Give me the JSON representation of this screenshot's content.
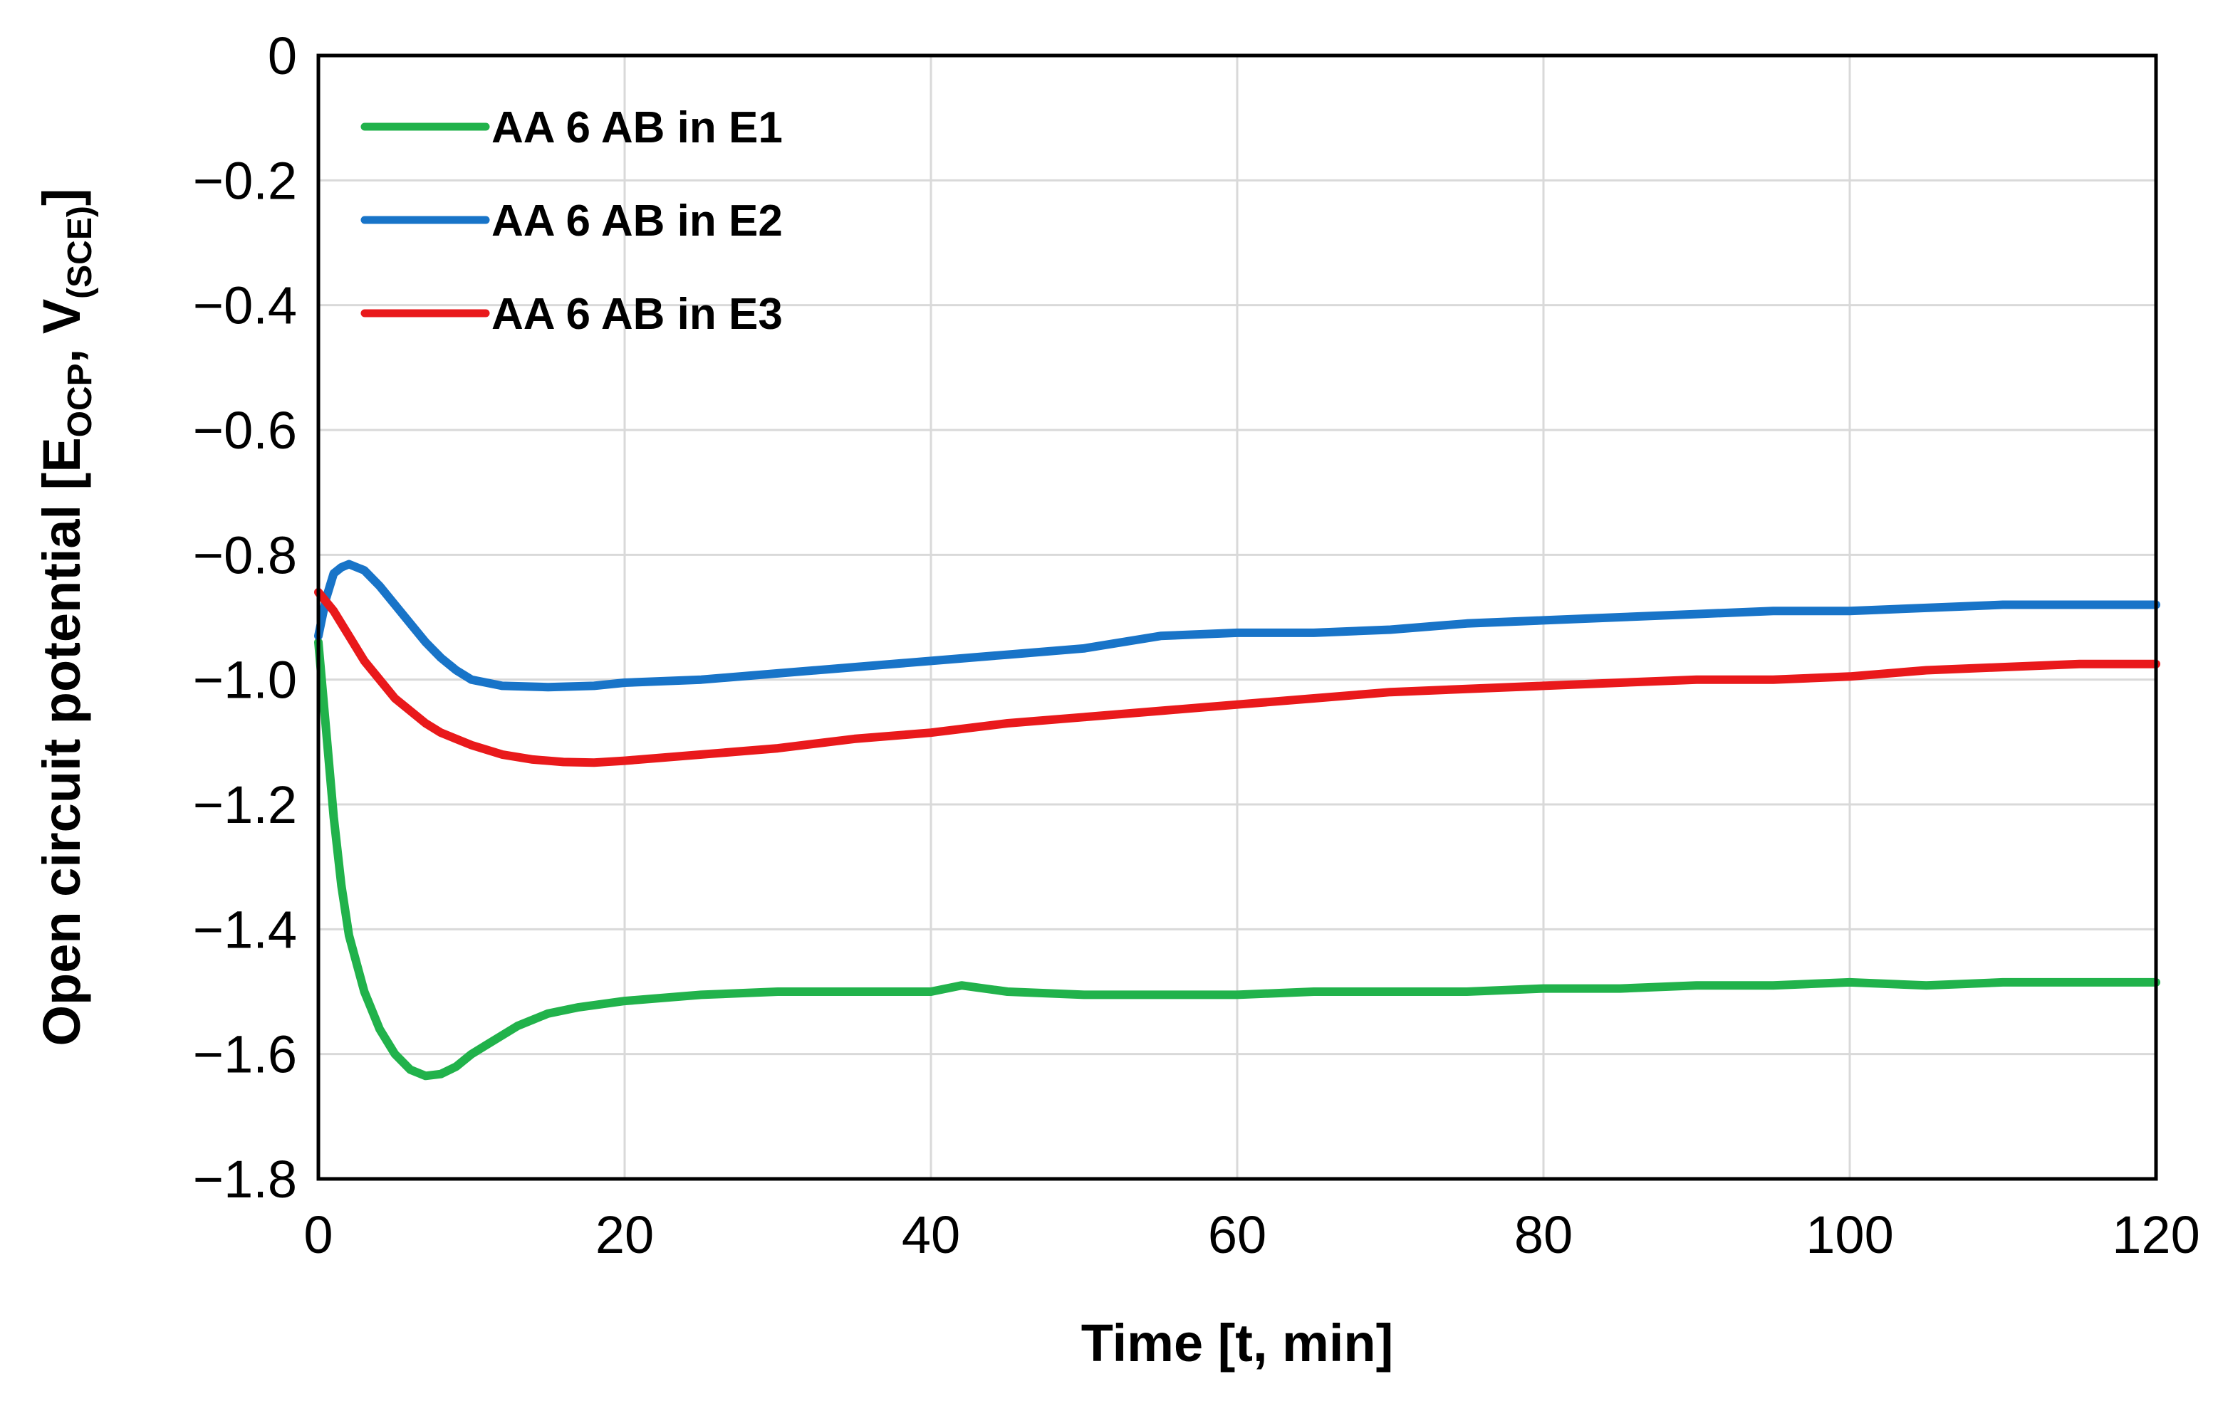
{
  "chart_data": {
    "type": "line",
    "title": "",
    "xlabel": "Time [t, min]",
    "ylabel": {
      "main": "Open circuit potential [E",
      "sub1": "OCP",
      "mid": ", V",
      "sub2": "(SCE)",
      "end": "]"
    },
    "xlim": [
      0,
      120
    ],
    "ylim": [
      -1.8,
      0
    ],
    "xticks": [
      0,
      20,
      40,
      60,
      80,
      100,
      120
    ],
    "yticks": [
      0,
      -0.2,
      -0.4,
      -0.6,
      -0.8,
      -1.0,
      -1.2,
      -1.4,
      -1.6,
      -1.8
    ],
    "xtick_labels": [
      "0",
      "20",
      "40",
      "60",
      "80",
      "100",
      "120"
    ],
    "ytick_labels": [
      "0",
      "−0.2",
      "−0.4",
      "−0.6",
      "−0.8",
      "−1.0",
      "−1.2",
      "−1.4",
      "−1.6",
      "−1.8"
    ],
    "grid": true,
    "legend_position": "top-left",
    "series": [
      {
        "name": "AA 6 AB in E1",
        "color": "#21b24b",
        "points": [
          [
            0,
            -0.94
          ],
          [
            0.5,
            -1.08
          ],
          [
            1,
            -1.22
          ],
          [
            1.5,
            -1.33
          ],
          [
            2,
            -1.41
          ],
          [
            3,
            -1.5
          ],
          [
            4,
            -1.56
          ],
          [
            5,
            -1.6
          ],
          [
            6,
            -1.625
          ],
          [
            7,
            -1.635
          ],
          [
            8,
            -1.632
          ],
          [
            9,
            -1.62
          ],
          [
            10,
            -1.6
          ],
          [
            11,
            -1.585
          ],
          [
            12,
            -1.57
          ],
          [
            13,
            -1.555
          ],
          [
            14,
            -1.545
          ],
          [
            15,
            -1.535
          ],
          [
            17,
            -1.525
          ],
          [
            20,
            -1.515
          ],
          [
            25,
            -1.505
          ],
          [
            30,
            -1.5
          ],
          [
            35,
            -1.5
          ],
          [
            40,
            -1.5
          ],
          [
            42,
            -1.49
          ],
          [
            45,
            -1.5
          ],
          [
            50,
            -1.505
          ],
          [
            55,
            -1.505
          ],
          [
            60,
            -1.505
          ],
          [
            65,
            -1.5
          ],
          [
            70,
            -1.5
          ],
          [
            75,
            -1.5
          ],
          [
            80,
            -1.495
          ],
          [
            85,
            -1.495
          ],
          [
            90,
            -1.49
          ],
          [
            95,
            -1.49
          ],
          [
            100,
            -1.485
          ],
          [
            105,
            -1.49
          ],
          [
            110,
            -1.485
          ],
          [
            115,
            -1.485
          ],
          [
            120,
            -1.485
          ]
        ]
      },
      {
        "name": "AA 6 AB in E2",
        "color": "#1874c8",
        "points": [
          [
            0,
            -0.93
          ],
          [
            0.5,
            -0.87
          ],
          [
            1,
            -0.83
          ],
          [
            1.5,
            -0.82
          ],
          [
            2,
            -0.815
          ],
          [
            3,
            -0.825
          ],
          [
            4,
            -0.85
          ],
          [
            5,
            -0.88
          ],
          [
            6,
            -0.91
          ],
          [
            7,
            -0.94
          ],
          [
            8,
            -0.965
          ],
          [
            9,
            -0.985
          ],
          [
            10,
            -1.0
          ],
          [
            12,
            -1.01
          ],
          [
            15,
            -1.012
          ],
          [
            18,
            -1.01
          ],
          [
            20,
            -1.005
          ],
          [
            25,
            -1.0
          ],
          [
            30,
            -0.99
          ],
          [
            35,
            -0.98
          ],
          [
            40,
            -0.97
          ],
          [
            45,
            -0.96
          ],
          [
            50,
            -0.95
          ],
          [
            55,
            -0.93
          ],
          [
            60,
            -0.925
          ],
          [
            65,
            -0.925
          ],
          [
            70,
            -0.92
          ],
          [
            75,
            -0.91
          ],
          [
            80,
            -0.905
          ],
          [
            85,
            -0.9
          ],
          [
            90,
            -0.895
          ],
          [
            95,
            -0.89
          ],
          [
            100,
            -0.89
          ],
          [
            105,
            -0.885
          ],
          [
            110,
            -0.88
          ],
          [
            115,
            -0.88
          ],
          [
            120,
            -0.88
          ]
        ]
      },
      {
        "name": "AA 6 AB in E3",
        "color": "#e9191b",
        "points": [
          [
            0,
            -0.86
          ],
          [
            1,
            -0.89
          ],
          [
            2,
            -0.93
          ],
          [
            3,
            -0.97
          ],
          [
            4,
            -1.0
          ],
          [
            5,
            -1.03
          ],
          [
            6,
            -1.05
          ],
          [
            7,
            -1.07
          ],
          [
            8,
            -1.085
          ],
          [
            10,
            -1.105
          ],
          [
            12,
            -1.12
          ],
          [
            14,
            -1.128
          ],
          [
            16,
            -1.132
          ],
          [
            18,
            -1.133
          ],
          [
            20,
            -1.13
          ],
          [
            25,
            -1.12
          ],
          [
            30,
            -1.11
          ],
          [
            35,
            -1.095
          ],
          [
            40,
            -1.085
          ],
          [
            45,
            -1.07
          ],
          [
            50,
            -1.06
          ],
          [
            55,
            -1.05
          ],
          [
            60,
            -1.04
          ],
          [
            65,
            -1.03
          ],
          [
            70,
            -1.02
          ],
          [
            75,
            -1.015
          ],
          [
            80,
            -1.01
          ],
          [
            85,
            -1.005
          ],
          [
            90,
            -1.0
          ],
          [
            95,
            -1.0
          ],
          [
            100,
            -0.995
          ],
          [
            105,
            -0.985
          ],
          [
            110,
            -0.98
          ],
          [
            115,
            -0.975
          ],
          [
            120,
            -0.975
          ]
        ]
      }
    ]
  }
}
